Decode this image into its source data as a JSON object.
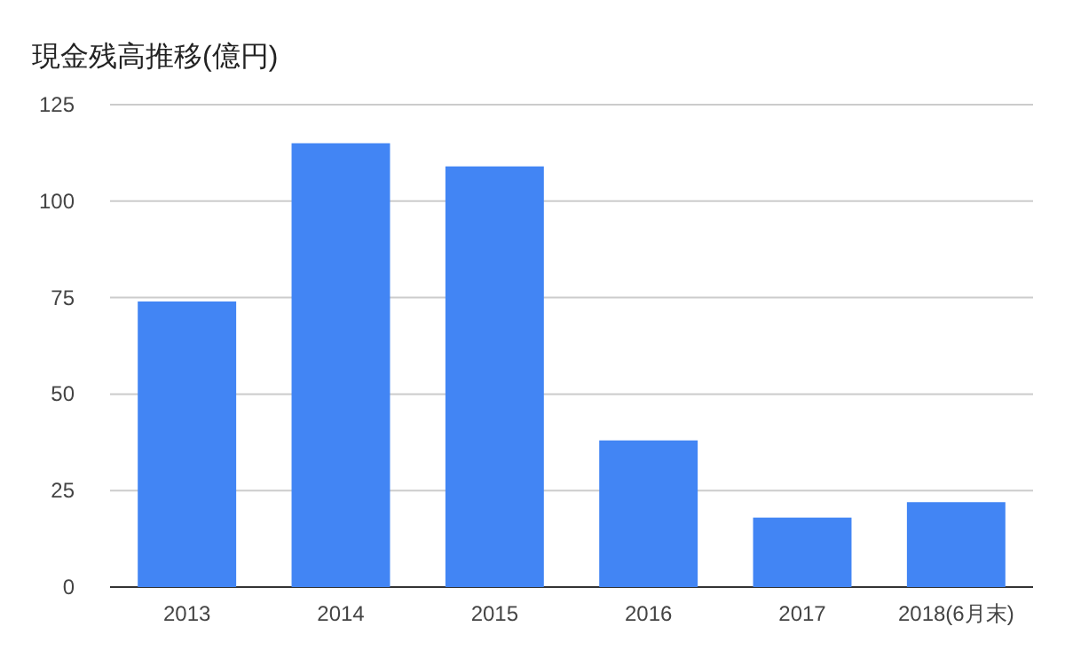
{
  "chart_data": {
    "type": "bar",
    "title": "現金残高推移(億円)",
    "categories": [
      "2013",
      "2014",
      "2015",
      "2016",
      "2017",
      "2018(6月末)"
    ],
    "values": [
      74,
      115,
      109,
      38,
      18,
      22
    ],
    "color": "#4285f4",
    "ylim": [
      0,
      125
    ],
    "yticks": [
      0,
      25,
      50,
      75,
      100,
      125
    ],
    "grid": "y"
  }
}
